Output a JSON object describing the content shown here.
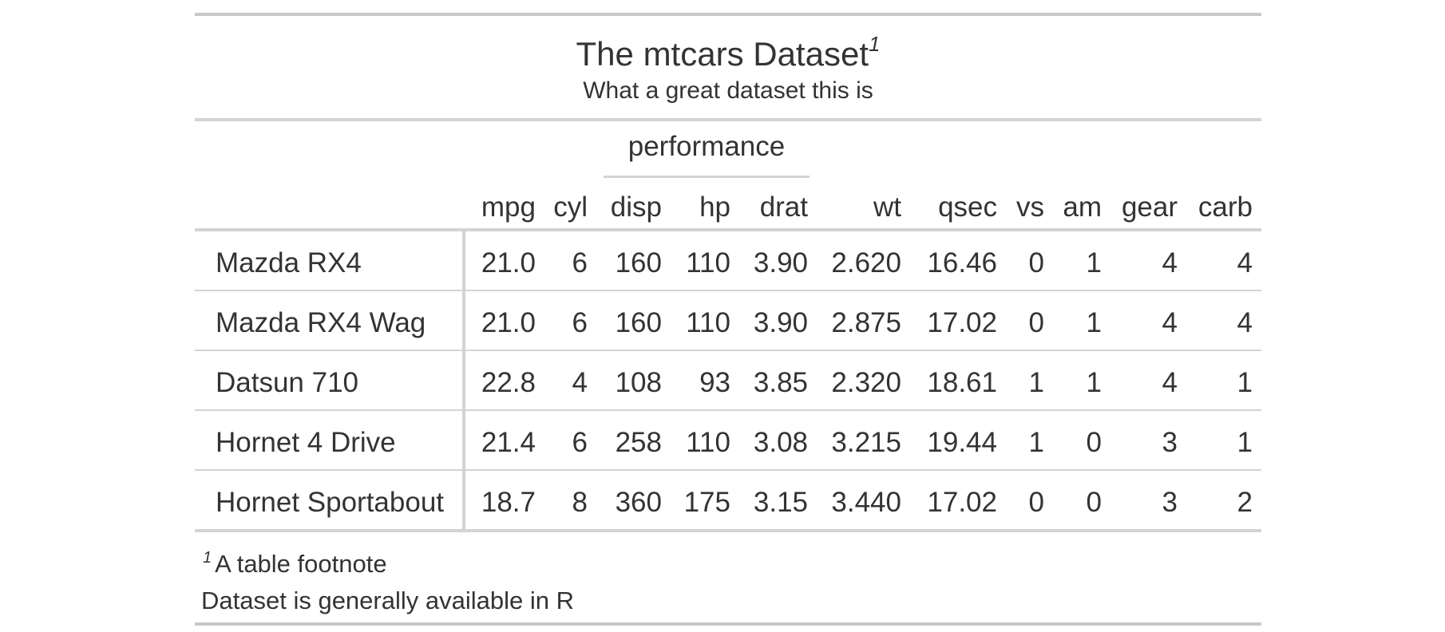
{
  "title": "The mtcars Dataset",
  "title_footnote_mark": "1",
  "subtitle": "What a great dataset this is",
  "spanner_label": "performance",
  "columns": [
    "mpg",
    "cyl",
    "disp",
    "hp",
    "drat",
    "wt",
    "qsec",
    "vs",
    "am",
    "gear",
    "carb"
  ],
  "rows": [
    {
      "name": "Mazda RX4",
      "values": [
        "21.0",
        "6",
        "160",
        "110",
        "3.90",
        "2.620",
        "16.46",
        "0",
        "1",
        "4",
        "4"
      ]
    },
    {
      "name": "Mazda RX4 Wag",
      "values": [
        "21.0",
        "6",
        "160",
        "110",
        "3.90",
        "2.875",
        "17.02",
        "0",
        "1",
        "4",
        "4"
      ]
    },
    {
      "name": "Datsun 710",
      "values": [
        "22.8",
        "4",
        "108",
        "93",
        "3.85",
        "2.320",
        "18.61",
        "1",
        "1",
        "4",
        "1"
      ]
    },
    {
      "name": "Hornet 4 Drive",
      "values": [
        "21.4",
        "6",
        "258",
        "110",
        "3.08",
        "3.215",
        "19.44",
        "1",
        "0",
        "3",
        "1"
      ]
    },
    {
      "name": "Hornet Sportabout",
      "values": [
        "18.7",
        "8",
        "360",
        "175",
        "3.15",
        "3.440",
        "17.02",
        "0",
        "0",
        "3",
        "2"
      ]
    }
  ],
  "footnote_mark": "1",
  "footnote": "A table footnote",
  "source_note": "Dataset is generally available in R"
}
